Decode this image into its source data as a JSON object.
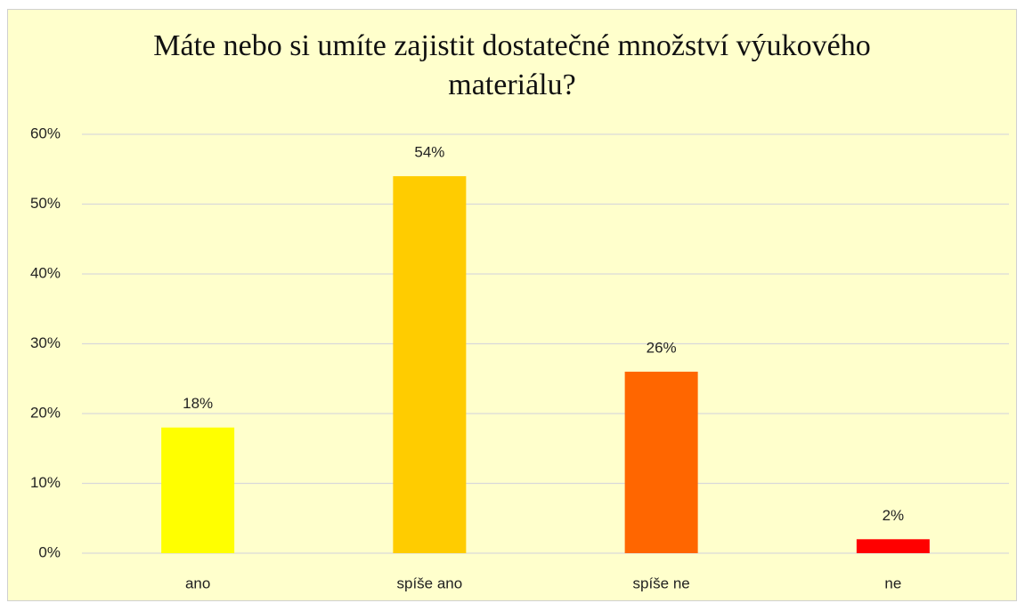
{
  "chart_data": {
    "type": "bar",
    "title": "Máte nebo si umíte zajistit dostatečné množství výukového materiálu?",
    "categories": [
      "ano",
      "spíše ano",
      "spíše ne",
      "ne"
    ],
    "values": [
      18,
      54,
      26,
      2
    ],
    "value_labels": [
      "18%",
      "54%",
      "26%",
      "2%"
    ],
    "colors": [
      "#ffff00",
      "#ffcc00",
      "#ff6600",
      "#ff0000"
    ],
    "ylim": [
      0,
      60
    ],
    "yticks": [
      {
        "value": 0,
        "label": "0%"
      },
      {
        "value": 10,
        "label": "10%"
      },
      {
        "value": 20,
        "label": "20%"
      },
      {
        "value": 30,
        "label": "30%"
      },
      {
        "value": 40,
        "label": "40%"
      },
      {
        "value": 50,
        "label": "50%"
      },
      {
        "value": 60,
        "label": "60%"
      }
    ],
    "grid": true
  }
}
